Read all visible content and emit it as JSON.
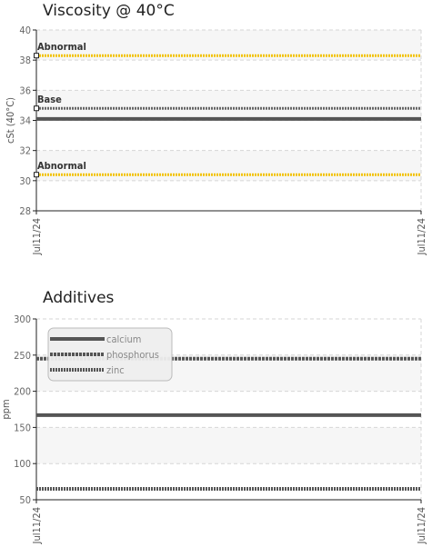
{
  "chart_data": [
    {
      "type": "line",
      "title": "Viscosity @ 40°C",
      "ylabel": "cSt (40°C)",
      "ylim": [
        28,
        40
      ],
      "yticks": [
        28,
        30,
        32,
        34,
        36,
        38,
        40
      ],
      "x_tick_labels": [
        "Jul11/24",
        "Jul11/24"
      ],
      "grid": true,
      "series": [
        {
          "values": [
            34.1,
            34.1
          ],
          "color": "#555555",
          "style": "solid"
        }
      ],
      "reference_lines": [
        {
          "label": "Abnormal",
          "value": 38.3,
          "color": "#f2c200",
          "style": "dotted"
        },
        {
          "label": "Base",
          "value": 34.8,
          "color": "#666666",
          "style": "dotted"
        },
        {
          "label": "Abnormal",
          "value": 30.4,
          "color": "#f2c200",
          "style": "dotted"
        }
      ]
    },
    {
      "type": "line",
      "title": "Additives",
      "ylabel": "ppm",
      "ylim": [
        50,
        300
      ],
      "yticks": [
        50,
        100,
        150,
        200,
        250,
        300
      ],
      "x_tick_labels": [
        "Jul11/24",
        "Jul11/24"
      ],
      "grid": true,
      "legend_position": "top-left",
      "series": [
        {
          "name": "calcium",
          "values": [
            167,
            167
          ],
          "color": "#555555",
          "style": "solid"
        },
        {
          "name": "phosphorus",
          "values": [
            245,
            245
          ],
          "color": "#555555",
          "style": "dashed"
        },
        {
          "name": "zinc",
          "values": [
            65,
            65
          ],
          "color": "#555555",
          "style": "dotted"
        }
      ]
    }
  ]
}
